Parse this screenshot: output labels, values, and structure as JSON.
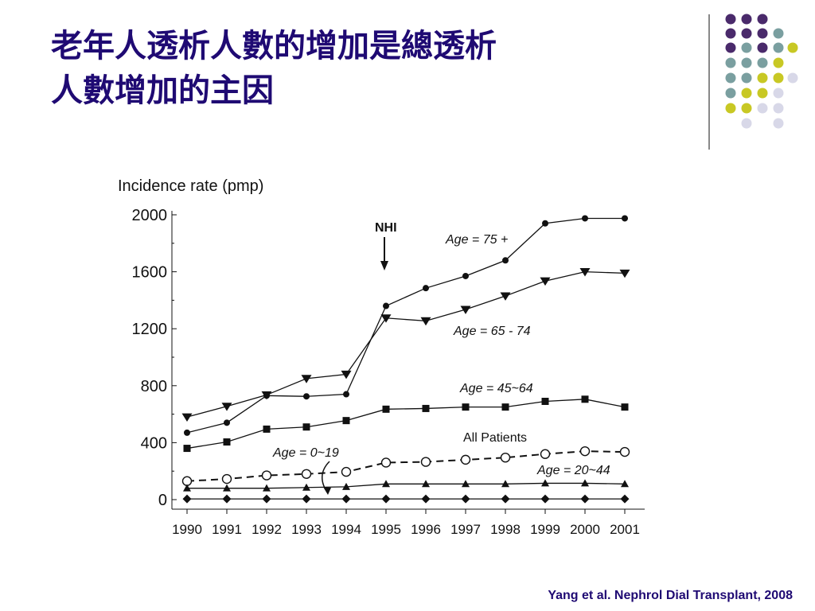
{
  "slide": {
    "title_line1": "老年人透析人數的增加是總透析",
    "title_line2": "人數增加的主因",
    "citation": "Yang et al. Nephrol Dial Transplant, 2008"
  },
  "colors": {
    "title": "#1f0a73",
    "dot_purple": "#4a2a6b",
    "dot_teal": "#7a9fa0",
    "dot_yellow": "#c8c824",
    "dot_lavender": "#d8d8e8"
  },
  "chart_data": {
    "type": "line",
    "ylabel": "Incidence rate (pmp)",
    "ylim": [
      0,
      2000
    ],
    "yticks": [
      0,
      400,
      800,
      1200,
      1600,
      2000
    ],
    "x": [
      1990,
      1991,
      1992,
      1993,
      1994,
      1995,
      1996,
      1997,
      1998,
      1999,
      2000,
      2001
    ],
    "grid": false,
    "series": [
      {
        "name": "Age = 75 +",
        "marker": "circle-filled",
        "dashed": false,
        "values": [
          470,
          540,
          730,
          725,
          740,
          1360,
          1485,
          1570,
          1680,
          1940,
          1975,
          1975
        ]
      },
      {
        "name": "Age = 65 - 74",
        "marker": "triangle-down",
        "dashed": false,
        "values": [
          580,
          655,
          735,
          850,
          880,
          1275,
          1255,
          1335,
          1430,
          1535,
          1600,
          1590
        ]
      },
      {
        "name": "Age = 45~64",
        "marker": "square",
        "dashed": false,
        "values": [
          360,
          405,
          495,
          510,
          555,
          635,
          640,
          650,
          650,
          690,
          705,
          650
        ]
      },
      {
        "name": "All Patients",
        "marker": "circle-open",
        "dashed": true,
        "values": [
          130,
          145,
          170,
          180,
          195,
          260,
          265,
          280,
          295,
          320,
          340,
          335
        ]
      },
      {
        "name": "Age = 20~44",
        "marker": "triangle-up",
        "dashed": false,
        "values": [
          80,
          80,
          80,
          85,
          90,
          110,
          110,
          110,
          110,
          115,
          115,
          110
        ]
      },
      {
        "name": "Age = 0~19",
        "marker": "diamond",
        "dashed": false,
        "values": [
          5,
          5,
          5,
          5,
          5,
          5,
          5,
          5,
          5,
          5,
          5,
          5
        ]
      }
    ],
    "annotations": {
      "nhi_label": "NHI",
      "nhi_year": 1995,
      "labels": [
        "Age = 75 +",
        "Age = 65 - 74",
        "Age = 45~64",
        "All Patients",
        "Age = 20~44",
        "Age = 0~19"
      ]
    }
  }
}
